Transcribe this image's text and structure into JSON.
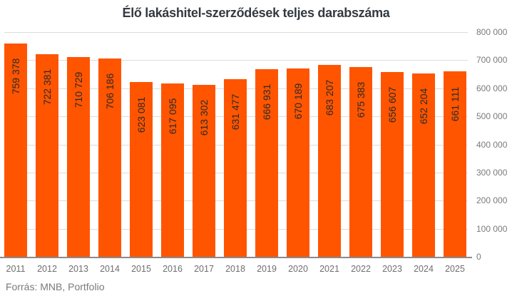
{
  "chart": {
    "title": "Élő lakáshitel-szerződések teljes darabszáma",
    "source": "Forrás: MNB, Portfolio",
    "bar_color": "#FF5500",
    "y_ticks": [
      "0",
      "100 000",
      "200 000",
      "300 000",
      "400 000",
      "500 000",
      "600 000",
      "700 000",
      "800 000"
    ],
    "bars": [
      {
        "year": "2011",
        "label": "759 378"
      },
      {
        "year": "2012",
        "label": "722 381"
      },
      {
        "year": "2013",
        "label": "710 729"
      },
      {
        "year": "2014",
        "label": "706 186"
      },
      {
        "year": "2015",
        "label": "623 081"
      },
      {
        "year": "2016",
        "label": "617 095"
      },
      {
        "year": "2017",
        "label": "613 302"
      },
      {
        "year": "2018",
        "label": "631 477"
      },
      {
        "year": "2019",
        "label": "666 931"
      },
      {
        "year": "2020",
        "label": "670 189"
      },
      {
        "year": "2021",
        "label": "683 207"
      },
      {
        "year": "2022",
        "label": "675 383"
      },
      {
        "year": "2023",
        "label": "656 607"
      },
      {
        "year": "2024",
        "label": "652 204"
      },
      {
        "year": "2025",
        "label": "661 111"
      }
    ]
  },
  "chart_data": {
    "type": "bar",
    "title": "Élő lakáshitel-szerződések teljes darabszáma",
    "categories": [
      "2011",
      "2012",
      "2013",
      "2014",
      "2015",
      "2016",
      "2017",
      "2018",
      "2019",
      "2020",
      "2021",
      "2022",
      "2023",
      "2024",
      "2025"
    ],
    "values": [
      759378,
      722381,
      710729,
      706186,
      623081,
      617095,
      613302,
      631477,
      666931,
      670189,
      683207,
      675383,
      656607,
      652204,
      661111
    ],
    "data_labels": [
      "759 378",
      "722 381",
      "710 729",
      "706 186",
      "623 081",
      "617 095",
      "613 302",
      "631 477",
      "666 931",
      "670 189",
      "683 207",
      "675 383",
      "656 607",
      "652 204",
      "661 111"
    ],
    "xlabel": "",
    "ylabel": "",
    "ylim": [
      0,
      800000
    ],
    "y_ticks": [
      0,
      100000,
      200000,
      300000,
      400000,
      500000,
      600000,
      700000,
      800000
    ],
    "y_axis_position": "right",
    "grid": true,
    "legend": null,
    "source": "Forrás: MNB, Portfolio",
    "bar_color": "#FF5500"
  }
}
